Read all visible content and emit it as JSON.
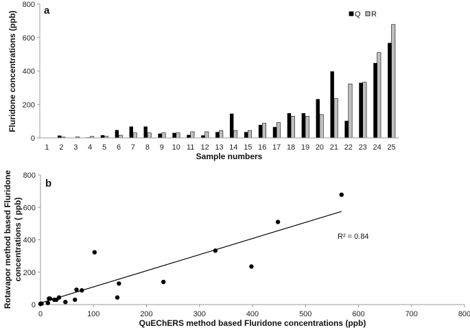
{
  "chart_data": [
    {
      "type": "bar",
      "panel_label": "a",
      "title": "",
      "xlabel": "Sample numbers",
      "ylabel": "Fluridone concentrations (ppb)",
      "ylim": [
        0,
        800
      ],
      "yticks": [
        0,
        200,
        400,
        600,
        800
      ],
      "legend_placement": "top-right",
      "grid": false,
      "categories": [
        "1",
        "2",
        "3",
        "4",
        "5",
        "6",
        "7",
        "8",
        "9",
        "10",
        "11",
        "12",
        "13",
        "14",
        "15",
        "16",
        "17",
        "18",
        "19",
        "20",
        "21",
        "22",
        "23",
        "24",
        "25"
      ],
      "series": [
        {
          "name": "Q",
          "color": "#000000",
          "values": [
            0,
            14,
            2,
            3,
            16,
            47,
            68,
            68,
            26,
            30,
            18,
            15,
            35,
            145,
            35,
            78,
            65,
            148,
            148,
            232,
            398,
            102,
            330,
            448,
            568
          ]
        },
        {
          "name": "R",
          "color": "#bfbfbf",
          "values": [
            0,
            5,
            6,
            9,
            10,
            16,
            30,
            30,
            30,
            30,
            37,
            37,
            44,
            44,
            44,
            88,
            92,
            130,
            130,
            140,
            235,
            323,
            333,
            510,
            678
          ]
        }
      ]
    },
    {
      "type": "scatter",
      "panel_label": "b",
      "title": "",
      "xlabel": "QuEChERS method based Fluridone concentrations (ppb)",
      "ylabel_lines": [
        "Rotavapor method based Fluridone",
        "concentrations ( ppb)"
      ],
      "xlim": [
        0,
        800
      ],
      "ylim": [
        0,
        800
      ],
      "xticks": [
        0,
        100,
        200,
        300,
        400,
        500,
        600,
        700,
        800
      ],
      "yticks": [
        0,
        200,
        400,
        600,
        800
      ],
      "grid": false,
      "annotation": "R² = 0.84",
      "trendline": {
        "x": [
          0,
          568
        ],
        "y": [
          10,
          575
        ]
      },
      "points": [
        {
          "x": 0,
          "y": 5
        },
        {
          "x": 2,
          "y": 6
        },
        {
          "x": 14,
          "y": 10
        },
        {
          "x": 16,
          "y": 37
        },
        {
          "x": 18,
          "y": 37
        },
        {
          "x": 26,
          "y": 30
        },
        {
          "x": 30,
          "y": 30
        },
        {
          "x": 35,
          "y": 44
        },
        {
          "x": 47,
          "y": 16
        },
        {
          "x": 65,
          "y": 30
        },
        {
          "x": 68,
          "y": 92
        },
        {
          "x": 78,
          "y": 88
        },
        {
          "x": 102,
          "y": 323
        },
        {
          "x": 145,
          "y": 44
        },
        {
          "x": 148,
          "y": 130
        },
        {
          "x": 232,
          "y": 140
        },
        {
          "x": 330,
          "y": 333
        },
        {
          "x": 398,
          "y": 235
        },
        {
          "x": 448,
          "y": 510
        },
        {
          "x": 568,
          "y": 678
        }
      ]
    }
  ]
}
